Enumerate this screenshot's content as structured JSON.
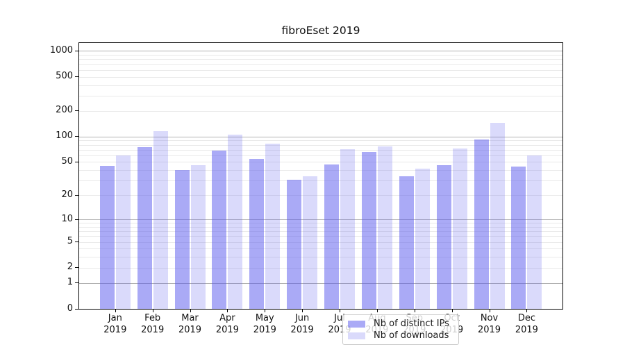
{
  "chart_data": {
    "type": "bar",
    "title": "fibroEset 2019",
    "xlabel": "",
    "ylabel": "",
    "categories": [
      "Jan",
      "Feb",
      "Mar",
      "Apr",
      "May",
      "Jun",
      "Jul",
      "Aug",
      "Sep",
      "Oct",
      "Nov",
      "Dec"
    ],
    "category_year_label": "2019",
    "series": [
      {
        "name": "Nb of distinct IPs",
        "color": "rgba(85,85,238,0.5)",
        "values": [
          45,
          75,
          40,
          68,
          54,
          31,
          47,
          66,
          34,
          46,
          93,
          44
        ]
      },
      {
        "name": "Nb of downloads",
        "color": "rgba(85,85,238,0.22)",
        "values": [
          60,
          115,
          46,
          105,
          83,
          34,
          71,
          76,
          42,
          72,
          146,
          60
        ]
      }
    ],
    "y_axis": {
      "scale": "log10(1+x)",
      "ticks": [
        0,
        1,
        2,
        5,
        10,
        20,
        50,
        100,
        200,
        500,
        1000
      ],
      "ylim": [
        0,
        1233
      ]
    },
    "grid": {
      "enabled": true,
      "major_lines_at": [
        1,
        10,
        100,
        1000
      ],
      "major_color": "#b2b2b2",
      "minor_color": "#e9e9e9"
    },
    "legend": {
      "position": "bottom-center",
      "entries": [
        "Nb of distinct IPs",
        "Nb of downloads"
      ]
    }
  }
}
